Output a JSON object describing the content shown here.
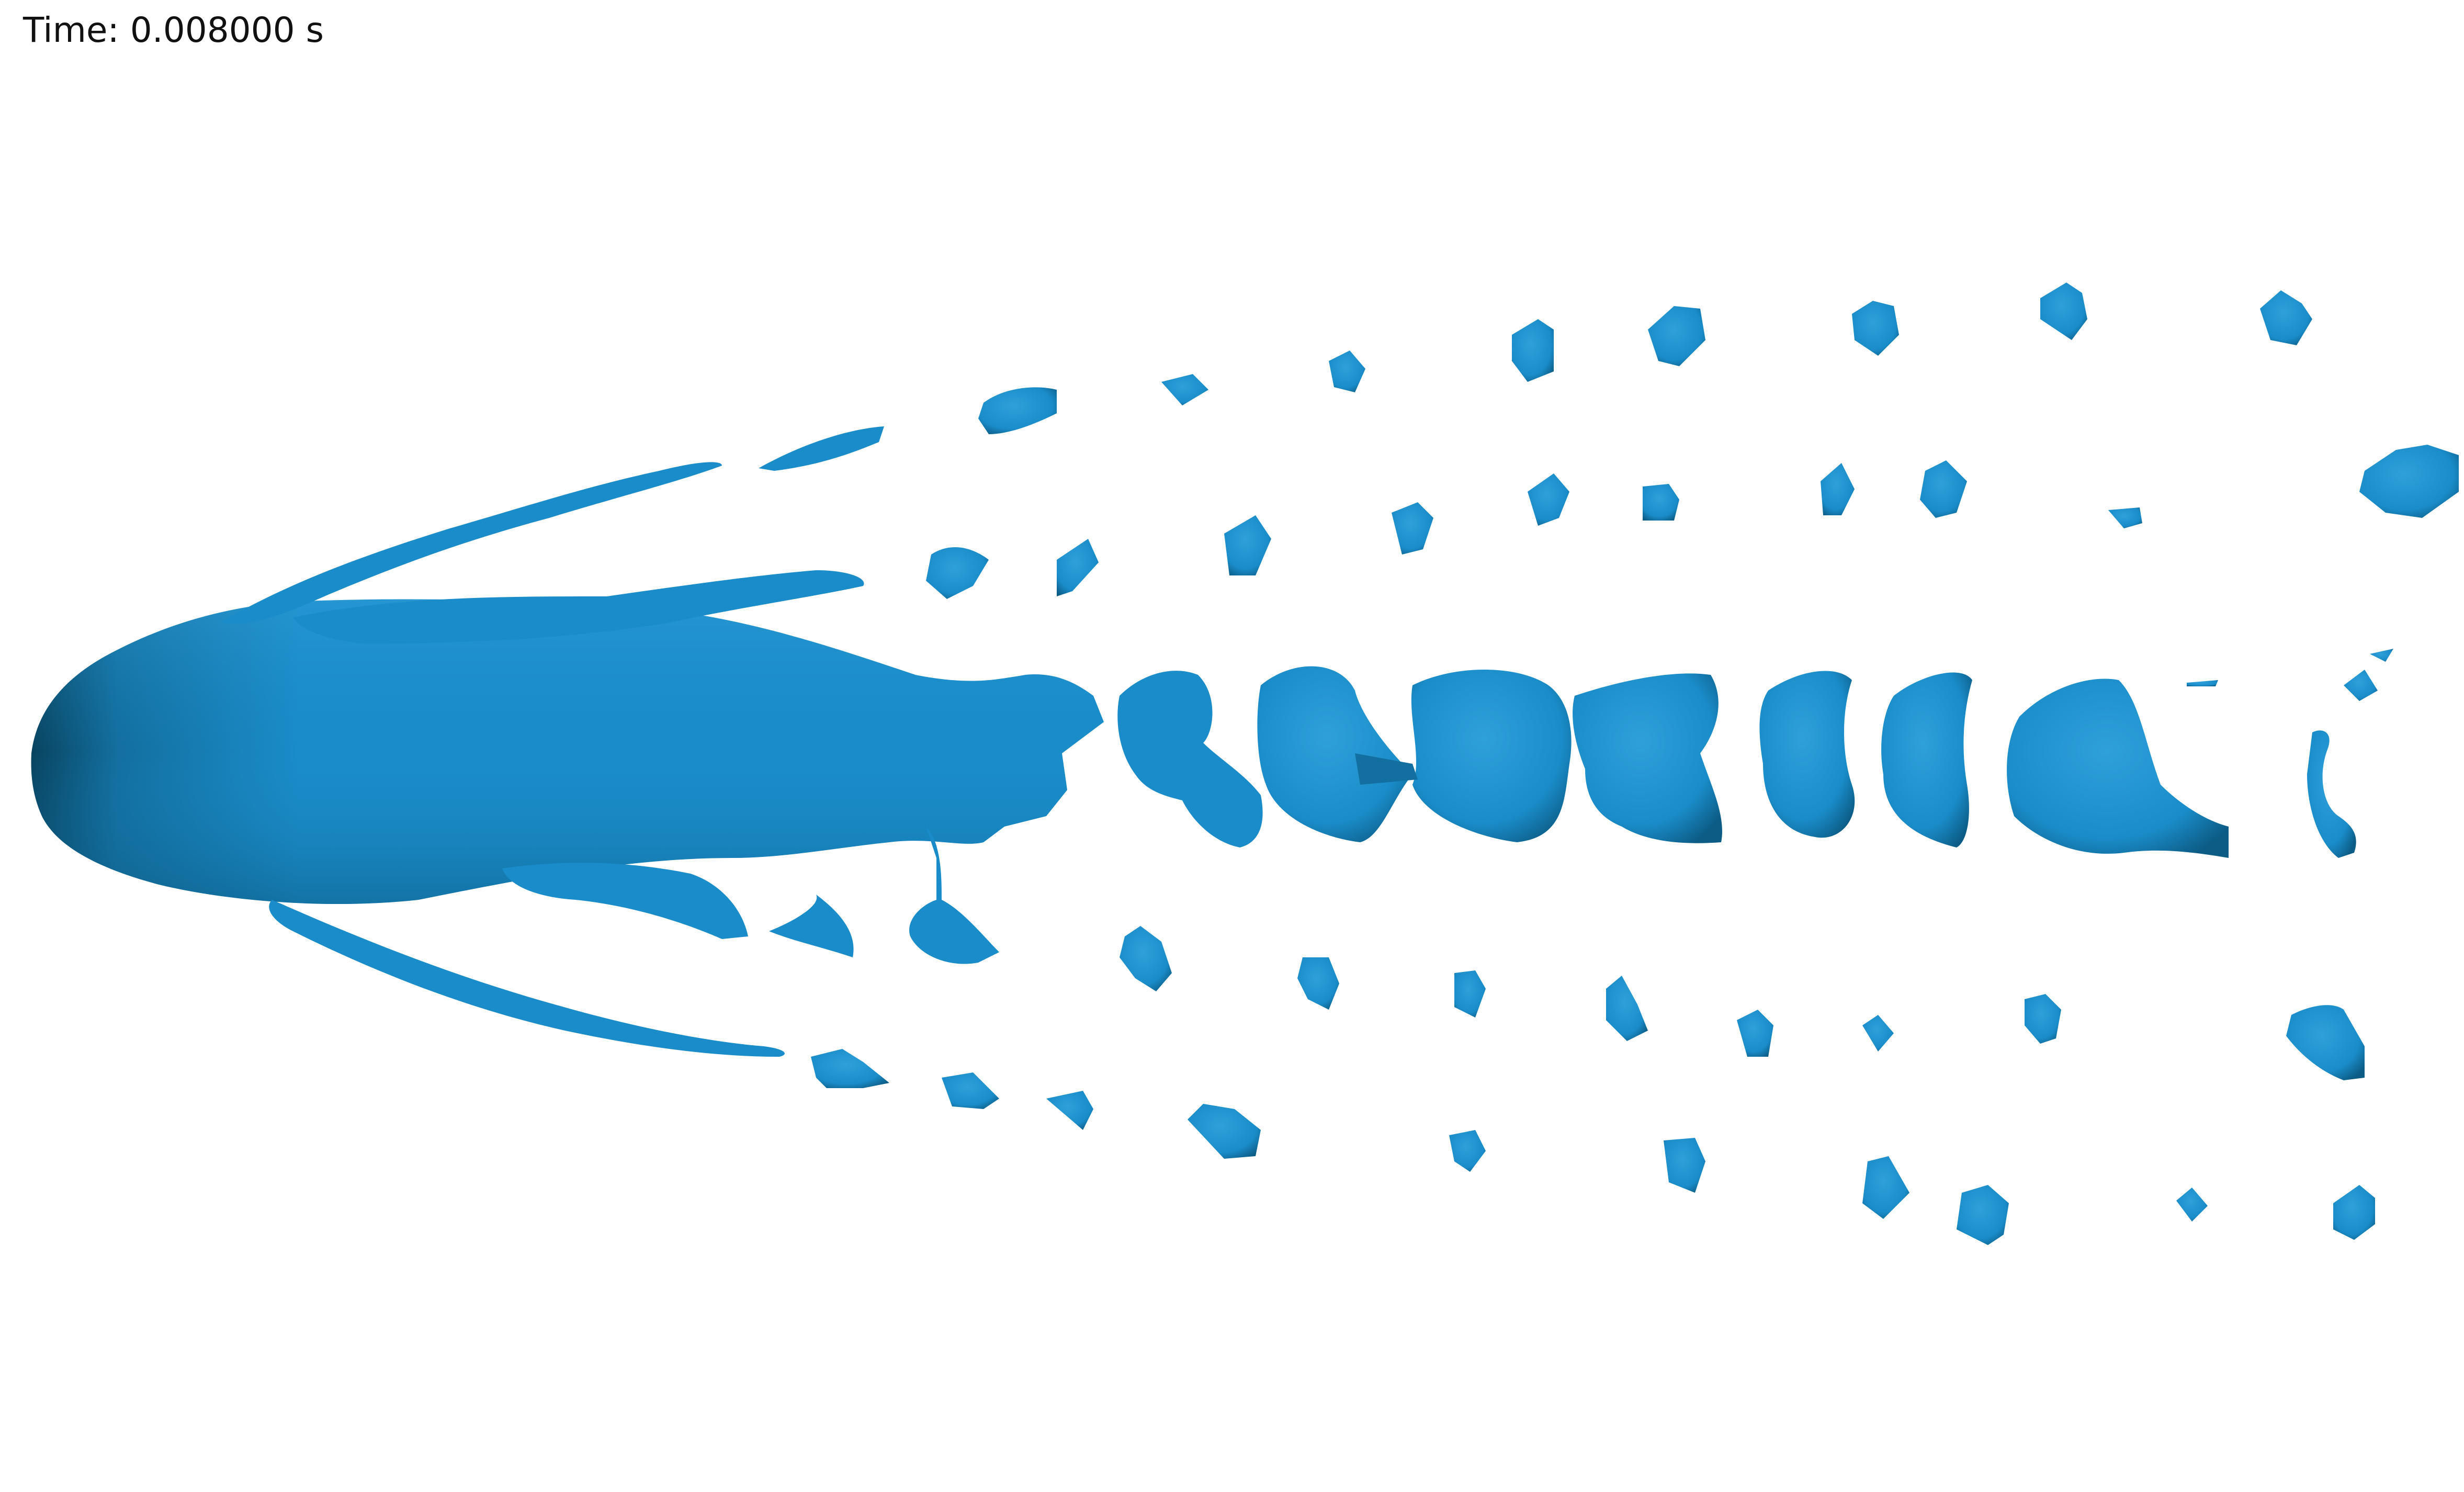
{
  "overlay": {
    "time_text": "Time: 0.008000 s"
  },
  "scene": {
    "background_color": "#ffffff",
    "surface_color": "#1a8cc9",
    "surface_shadow_color": "#0b5478",
    "surface_highlight_color": "#3aa8e0",
    "description_visible": false
  }
}
